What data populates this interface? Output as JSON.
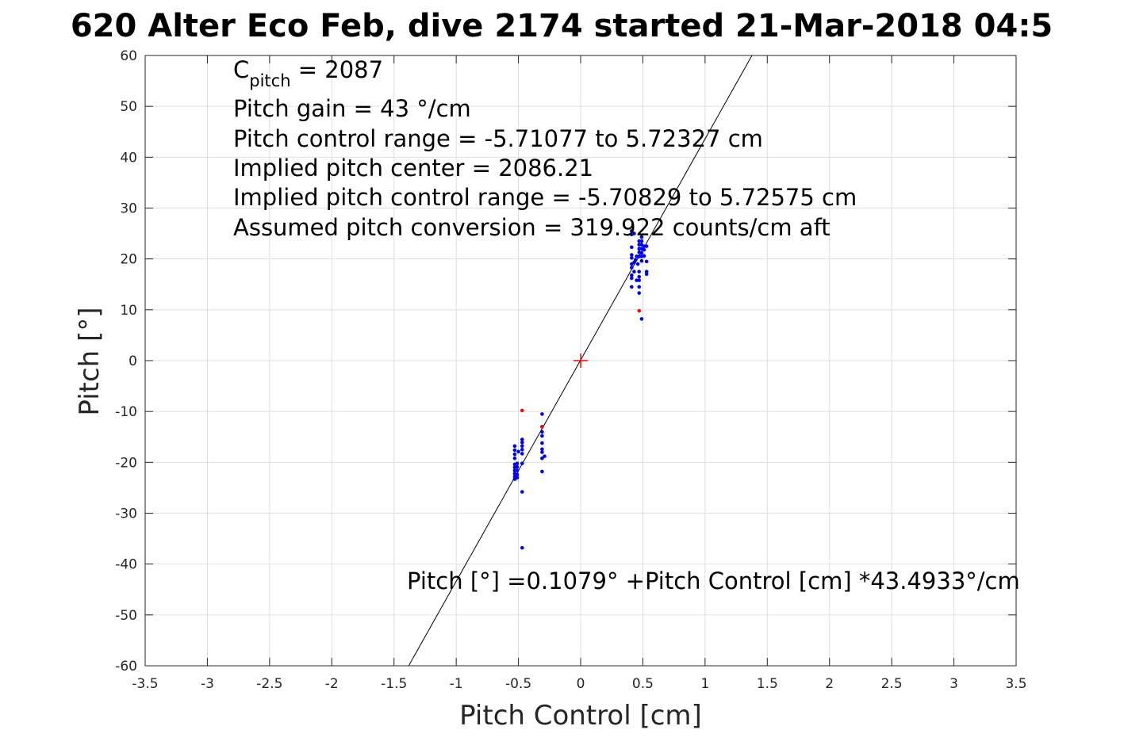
{
  "chart_data": {
    "type": "scatter",
    "title": "620 Alter Eco Feb, dive 2174 started 21-Mar-2018 04:5",
    "xlabel": "Pitch Control [cm]",
    "ylabel": "Pitch [°]",
    "xlim": [
      -3.5,
      3.5
    ],
    "ylim": [
      -60,
      60
    ],
    "x_ticks": [
      -3.5,
      -3,
      -2.5,
      -2,
      -1.5,
      -1,
      -0.5,
      0,
      0.5,
      1,
      1.5,
      2,
      2.5,
      3,
      3.5
    ],
    "x_tick_labels": [
      "-3.5",
      "-3",
      "-2.5",
      "-2",
      "-1.5",
      "-1",
      "-0.5",
      "0",
      "0.5",
      "1",
      "1.5",
      "2",
      "2.5",
      "3",
      "3.5"
    ],
    "y_ticks": [
      -60,
      -50,
      -40,
      -30,
      -20,
      -10,
      0,
      10,
      20,
      30,
      40,
      50,
      60
    ],
    "y_tick_labels": [
      "-60",
      "-50",
      "-40",
      "-30",
      "-20",
      "-10",
      "0",
      "10",
      "20",
      "30",
      "40",
      "50",
      "60"
    ],
    "grid": true,
    "fit_line": {
      "intercept": 0.1079,
      "slope": 43.4933,
      "color": "#000000",
      "label": "Pitch [°] =0.1079° +Pitch Control [cm] *43.4933°/cm"
    },
    "center_marker": {
      "x": 0,
      "y": 0,
      "color": "#ff0000",
      "marker": "plus"
    },
    "annotations": {
      "c_pitch_main": "C",
      "c_pitch_sub": "pitch",
      "c_pitch_value": " = 2087",
      "lines": [
        "Pitch gain = 43 °/cm",
        "Pitch control range = -5.71077 to 5.72327 cm",
        "Implied pitch center = 2086.21",
        "Implied pitch control range = -5.70829 to 5.72575 cm",
        "Assumed pitch conversion = 319.922 counts/cm aft"
      ]
    },
    "series": [
      {
        "color": "#0000ff",
        "points": [
          [
            0.41,
            25.5
          ],
          [
            0.41,
            24.8
          ],
          [
            0.41,
            22.3
          ],
          [
            0.41,
            20.8
          ],
          [
            0.41,
            20.2
          ],
          [
            0.41,
            19.0
          ],
          [
            0.41,
            18.3
          ],
          [
            0.41,
            16.8
          ],
          [
            0.41,
            16.2
          ],
          [
            0.41,
            14.5
          ],
          [
            0.43,
            25.0
          ],
          [
            0.43,
            19.3
          ],
          [
            0.43,
            17.5
          ],
          [
            0.44,
            19.8
          ],
          [
            0.45,
            20.5
          ],
          [
            0.45,
            15.8
          ],
          [
            0.46,
            19.0
          ],
          [
            0.47,
            23.5
          ],
          [
            0.47,
            22.8
          ],
          [
            0.47,
            22.0
          ],
          [
            0.47,
            21.3
          ],
          [
            0.47,
            20.5
          ],
          [
            0.47,
            17.5
          ],
          [
            0.47,
            16.5
          ],
          [
            0.47,
            15.8
          ],
          [
            0.47,
            14.5
          ],
          [
            0.47,
            13.3
          ],
          [
            0.49,
            24.3
          ],
          [
            0.49,
            23.5
          ],
          [
            0.49,
            22.8
          ],
          [
            0.49,
            22.0
          ],
          [
            0.49,
            21.2
          ],
          [
            0.49,
            20.5
          ],
          [
            0.49,
            19.6
          ],
          [
            0.49,
            8.2
          ],
          [
            0.51,
            22.5
          ],
          [
            0.51,
            21.8
          ],
          [
            0.51,
            20.6
          ],
          [
            0.53,
            22.5
          ],
          [
            0.53,
            19.5
          ],
          [
            0.53,
            17.5
          ],
          [
            0.53,
            17.0
          ],
          [
            -0.53,
            -16.8
          ],
          [
            -0.53,
            -17.6
          ],
          [
            -0.53,
            -18.4
          ],
          [
            -0.53,
            -19.2
          ],
          [
            -0.53,
            -20.4
          ],
          [
            -0.53,
            -21.0
          ],
          [
            -0.53,
            -21.6
          ],
          [
            -0.53,
            -22.2
          ],
          [
            -0.53,
            -22.8
          ],
          [
            -0.53,
            -23.3
          ],
          [
            -0.51,
            -20.2
          ],
          [
            -0.51,
            -20.9
          ],
          [
            -0.51,
            -21.6
          ],
          [
            -0.51,
            -22.4
          ],
          [
            -0.51,
            -23.0
          ],
          [
            -0.5,
            -17.9
          ],
          [
            -0.47,
            -15.5
          ],
          [
            -0.47,
            -16.1
          ],
          [
            -0.47,
            -16.8
          ],
          [
            -0.47,
            -17.5
          ],
          [
            -0.47,
            -18.3
          ],
          [
            -0.47,
            -20.2
          ],
          [
            -0.47,
            -25.8
          ],
          [
            -0.47,
            -36.8
          ],
          [
            -0.31,
            -10.5
          ],
          [
            -0.31,
            -13.0
          ],
          [
            -0.31,
            -14.0
          ],
          [
            -0.31,
            -14.8
          ],
          [
            -0.31,
            -16.2
          ],
          [
            -0.31,
            -17.4
          ],
          [
            -0.31,
            -18.0
          ],
          [
            -0.31,
            -19.2
          ],
          [
            -0.31,
            -21.8
          ],
          [
            -0.29,
            -18.8
          ]
        ]
      },
      {
        "color": "#ff0000",
        "points": [
          [
            0.47,
            9.8
          ],
          [
            -0.47,
            -9.8
          ],
          [
            -0.31,
            -13.0
          ]
        ]
      }
    ]
  }
}
